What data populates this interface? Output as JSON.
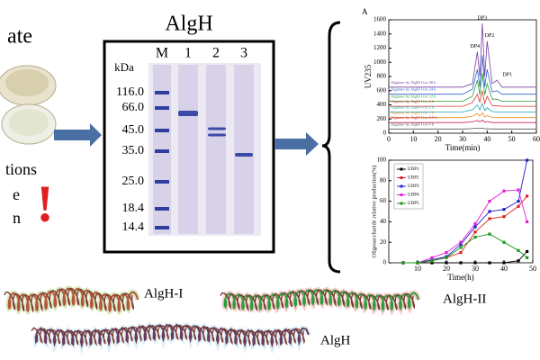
{
  "left": {
    "title": "ate",
    "lines": [
      "tions",
      "e",
      "n"
    ],
    "alert": "!"
  },
  "gel": {
    "title": "AlgH",
    "unit": "kDa",
    "lanes": [
      "M",
      "1",
      "2",
      "3"
    ],
    "markers": [
      "116.0",
      "66.0",
      "45.0",
      "35.0",
      "25.0",
      "18.4",
      "14.4"
    ]
  },
  "chart_data": [
    {
      "type": "line",
      "panel": "A",
      "y_label": "UV235",
      "x_label": "Time(min)",
      "xlim": [
        0,
        60
      ],
      "ylim": [
        0,
        1600
      ],
      "xticks": [
        0,
        10,
        20,
        30,
        40,
        50,
        60
      ],
      "yticks": [
        0,
        200,
        400,
        600,
        800,
        1000,
        1200,
        1400,
        1600
      ],
      "annotations": [
        "DP4",
        "DP3",
        "DP2",
        "DP1"
      ],
      "x": [
        0,
        30,
        34,
        36,
        37,
        38,
        39,
        40,
        42,
        44,
        46,
        60
      ],
      "series": [
        {
          "name": "Alginate by AlgH-I for 48 h",
          "color": "#7b3fa0",
          "values": [
            650,
            650,
            700,
            1150,
            800,
            1550,
            800,
            1300,
            700,
            750,
            650,
            650
          ]
        },
        {
          "name": "Alginate by AlgH-I for 24 h",
          "color": "#2b5fcc",
          "values": [
            550,
            550,
            620,
            900,
            650,
            1100,
            650,
            900,
            580,
            600,
            550,
            550
          ]
        },
        {
          "name": "Alginate by AlgH-I for 12 h",
          "color": "#2e9e3e",
          "values": [
            450,
            450,
            520,
            750,
            540,
            850,
            540,
            700,
            480,
            480,
            450,
            450
          ]
        },
        {
          "name": "Alginate by AlgH-I for 4 h",
          "color": "#d43a2f",
          "values": [
            380,
            380,
            430,
            550,
            440,
            600,
            420,
            520,
            390,
            385,
            380,
            380
          ]
        },
        {
          "name": "Alginate by AlgH-I for 2 h",
          "color": "#1aa6b7",
          "values": [
            300,
            300,
            330,
            400,
            330,
            420,
            320,
            360,
            305,
            300,
            300,
            300
          ]
        },
        {
          "name": "Alginate by AlgH-I for 1 h",
          "color": "#e58a1f",
          "values": [
            220,
            220,
            240,
            280,
            240,
            290,
            230,
            250,
            222,
            220,
            220,
            220
          ]
        },
        {
          "name": "Alginate by AlgH-I for 0.5 h",
          "color": "#c2185b",
          "values": [
            150,
            150,
            160,
            180,
            160,
            185,
            155,
            165,
            150,
            150,
            150,
            150
          ]
        },
        {
          "name": "Alginate by AlgH-I for 0 h",
          "color": "#555555",
          "values": [
            60,
            60,
            65,
            70,
            65,
            72,
            62,
            64,
            60,
            60,
            60,
            60
          ]
        }
      ]
    },
    {
      "type": "line",
      "y_label": "Oligosaccharide relative production(%)",
      "x_label": "Time(h)",
      "xlim": [
        0,
        50
      ],
      "ylim": [
        0,
        100
      ],
      "xticks": [
        10,
        20,
        30,
        40,
        50
      ],
      "yticks": [
        0,
        20,
        40,
        60,
        80,
        100
      ],
      "x": [
        5,
        10,
        15,
        20,
        25,
        30,
        35,
        40,
        45,
        48
      ],
      "series": [
        {
          "name": "UDP1",
          "color": "#000000",
          "values": [
            0,
            0,
            0,
            0,
            0,
            0,
            0,
            0,
            2,
            11
          ]
        },
        {
          "name": "UDP2",
          "color": "#e02020",
          "values": [
            0,
            0,
            2,
            5,
            10,
            30,
            43,
            45,
            55,
            65
          ]
        },
        {
          "name": "UDP3",
          "color": "#2020c8",
          "values": [
            0,
            0,
            3,
            6,
            18,
            35,
            50,
            52,
            60,
            100
          ]
        },
        {
          "name": "UDP4",
          "color": "#e020e0",
          "values": [
            0,
            0,
            5,
            10,
            20,
            38,
            60,
            70,
            71,
            40
          ]
        },
        {
          "name": "UDP5",
          "color": "#1a9a1a",
          "values": [
            0,
            0,
            2,
            5,
            15,
            25,
            28,
            20,
            12,
            5
          ]
        }
      ]
    }
  ],
  "structures": [
    "AlgH-I",
    "AlgH-II",
    "AlgH"
  ]
}
